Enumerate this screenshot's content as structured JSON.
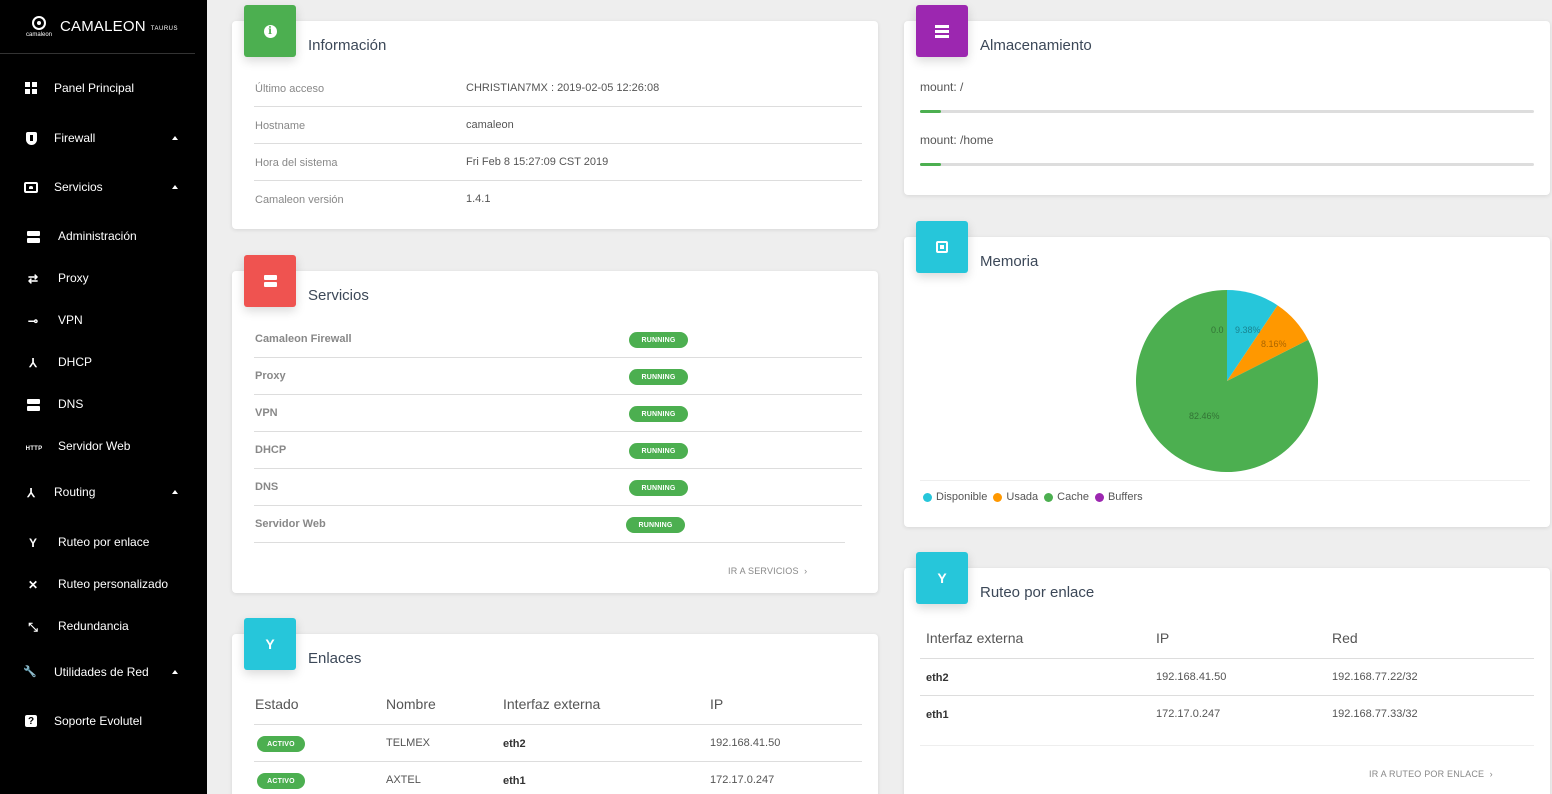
{
  "brand": {
    "logo_text": "camaleon",
    "name": "CAMALEON",
    "sub": "TAURUS"
  },
  "sidebar": {
    "items": [
      {
        "label": "Panel Principal",
        "icon": "dashboard-icon"
      },
      {
        "label": "Firewall",
        "icon": "shield-icon"
      },
      {
        "label": "Servicios",
        "icon": "services-icon"
      },
      {
        "label": "Administración",
        "icon": "server-icon"
      },
      {
        "label": "Proxy",
        "icon": "swap-icon",
        "glyph": "⇄"
      },
      {
        "label": "VPN",
        "icon": "key-icon",
        "glyph": "⊸"
      },
      {
        "label": "DHCP",
        "icon": "network-icon",
        "glyph": "⅄"
      },
      {
        "label": "DNS",
        "icon": "dns-server-icon"
      },
      {
        "label": "Servidor Web",
        "icon": "http-icon",
        "glyph": "HTTP"
      },
      {
        "label": "Routing",
        "icon": "routing-icon",
        "glyph": "⅄"
      },
      {
        "label": "Ruteo por enlace",
        "icon": "fork-icon",
        "glyph": "Y"
      },
      {
        "label": "Ruteo personalizado",
        "icon": "cross-arrows-icon",
        "glyph": "✕"
      },
      {
        "label": "Redundancia",
        "icon": "expand-icon",
        "glyph": "⤡"
      },
      {
        "label": "Utilidades de Red",
        "icon": "wrench-icon",
        "glyph": "🔧"
      },
      {
        "label": "Soporte Evolutel",
        "icon": "help-icon",
        "glyph": "?"
      }
    ]
  },
  "info": {
    "title": "Información",
    "rows": [
      {
        "key": "Último acceso",
        "value": "CHRISTIAN7MX : 2019-02-05 12:26:08"
      },
      {
        "key": "Hostname",
        "value": "camaleon"
      },
      {
        "key": "Hora del sistema",
        "value": "Fri Feb 8 15:27:09 CST 2019"
      },
      {
        "key": "Camaleon versión",
        "value": "1.4.1"
      }
    ]
  },
  "services": {
    "title": "Servicios",
    "rows": [
      {
        "name": "Camaleon Firewall",
        "status": "RUNNING"
      },
      {
        "name": "Proxy",
        "status": "RUNNING"
      },
      {
        "name": "VPN",
        "status": "RUNNING"
      },
      {
        "name": "DHCP",
        "status": "RUNNING"
      },
      {
        "name": "DNS",
        "status": "RUNNING"
      },
      {
        "name": "Servidor Web",
        "status": "RUNNING"
      }
    ],
    "link": "IR A SERVICIOS",
    "link_arrow": "›"
  },
  "links": {
    "title": "Enlaces",
    "headers": [
      "Estado",
      "Nombre",
      "Interfaz externa",
      "IP"
    ],
    "rows": [
      {
        "estado": "ACTIVO",
        "nombre": "TELMEX",
        "interfaz": "eth2",
        "ip": "192.168.41.50"
      },
      {
        "estado": "ACTIVO",
        "nombre": "AXTEL",
        "interfaz": "eth1",
        "ip": "172.17.0.247"
      }
    ]
  },
  "storage": {
    "title": "Almacenamiento",
    "mounts": [
      {
        "label": "mount: /",
        "used_fraction": 0.035
      },
      {
        "label": "mount: /home",
        "used_fraction": 0.035
      }
    ]
  },
  "memory": {
    "title": "Memoria",
    "chart_data": {
      "type": "pie",
      "slices": [
        {
          "name": "Disponible",
          "value": 9.38,
          "color": "#26c6da"
        },
        {
          "name": "Usada",
          "value": 8.16,
          "color": "#ff9800"
        },
        {
          "name": "Cache",
          "value": 82.46,
          "color": "#4caf50"
        },
        {
          "name": "Buffers",
          "value": 0.0,
          "color": "#9c27b0"
        }
      ],
      "labels": [
        "0.0",
        "9.38%",
        "8.16%",
        "82.46%"
      ]
    }
  },
  "routing": {
    "title": "Ruteo por enlace",
    "headers": [
      "Interfaz externa",
      "IP",
      "Red"
    ],
    "rows": [
      {
        "interfaz": "eth2",
        "ip": "192.168.41.50",
        "red": "192.168.77.22/32"
      },
      {
        "interfaz": "eth1",
        "ip": "172.17.0.247",
        "red": "192.168.77.33/32"
      }
    ],
    "link": "IR A RUTEO POR ENLACE",
    "link_arrow": "›"
  }
}
